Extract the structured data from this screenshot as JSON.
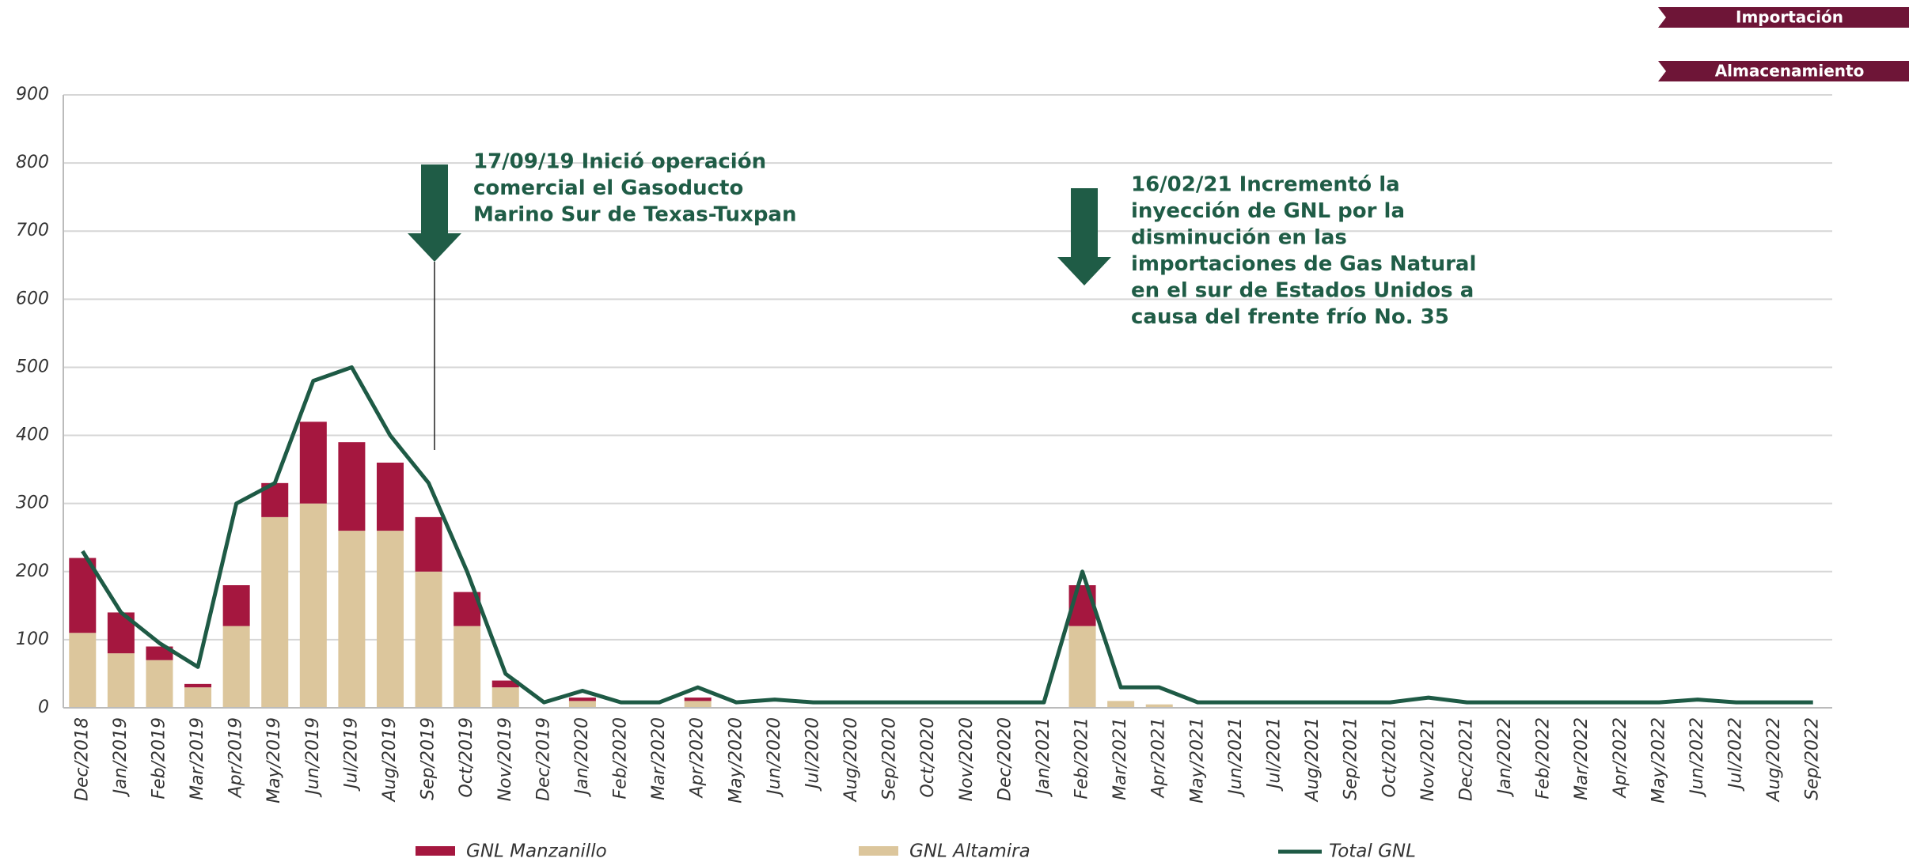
{
  "nav": [
    "Importación",
    "Almacenamiento"
  ],
  "chart_data": {
    "type": "bar",
    "categories": [
      "Dec/2018",
      "Jan/2019",
      "Feb/2019",
      "Mar/2019",
      "Apr/2019",
      "May/2019",
      "Jun/2019",
      "Jul/2019",
      "Aug/2019",
      "Sep/2019",
      "Oct/2019",
      "Nov/2019",
      "Dec/2019",
      "Jan/2020",
      "Feb/2020",
      "Mar/2020",
      "Apr/2020",
      "May/2020",
      "Jun/2020",
      "Jul/2020",
      "Aug/2020",
      "Sep/2020",
      "Oct/2020",
      "Nov/2020",
      "Dec/2020",
      "Jan/2021",
      "Feb/2021",
      "Mar/2021",
      "Apr/2021",
      "May/2021",
      "Jun/2021",
      "Jul/2021",
      "Aug/2021",
      "Sep/2021",
      "Oct/2021",
      "Nov/2021",
      "Dec/2021",
      "Jan/2022",
      "Feb/2022",
      "Mar/2022",
      "Apr/2022",
      "May/2022",
      "Jun/2022",
      "Jul/2022",
      "Aug/2022",
      "Sep/2022"
    ],
    "series": [
      {
        "name": "GNL Manzanillo",
        "color": "#a5173f",
        "values": [
          110,
          60,
          20,
          5,
          60,
          50,
          120,
          130,
          100,
          80,
          50,
          10,
          0,
          5,
          0,
          0,
          5,
          0,
          0,
          0,
          0,
          0,
          0,
          0,
          0,
          0,
          60,
          0,
          0,
          0,
          0,
          0,
          0,
          0,
          0,
          0,
          0,
          0,
          0,
          0,
          0,
          0,
          0,
          0,
          0,
          0
        ]
      },
      {
        "name": "GNL Altamira",
        "color": "#dcc69c",
        "values": [
          110,
          80,
          70,
          30,
          120,
          280,
          300,
          260,
          260,
          200,
          120,
          30,
          0,
          10,
          0,
          0,
          10,
          0,
          0,
          0,
          0,
          0,
          0,
          0,
          0,
          0,
          120,
          10,
          5,
          0,
          0,
          0,
          0,
          0,
          0,
          0,
          0,
          0,
          0,
          0,
          0,
          0,
          0,
          0,
          0,
          0
        ]
      },
      {
        "name": "Total GNL",
        "color": "#1e5a45",
        "values": [
          230,
          140,
          95,
          60,
          300,
          330,
          480,
          500,
          400,
          330,
          200,
          50,
          8,
          25,
          8,
          8,
          30,
          8,
          12,
          8,
          8,
          8,
          8,
          8,
          8,
          8,
          200,
          30,
          30,
          8,
          8,
          8,
          8,
          8,
          8,
          15,
          8,
          8,
          8,
          8,
          8,
          8,
          12,
          8,
          8,
          8
        ]
      }
    ],
    "ylim": [
      0,
      900
    ],
    "yticks": [
      0,
      100,
      200,
      300,
      400,
      500,
      600,
      700,
      800,
      900
    ],
    "grid": true,
    "annotations": [
      {
        "lines": [
          "17/09/19 Inició operación",
          "comercial el Gasoducto",
          "Marino Sur de Texas-Tuxpan"
        ]
      },
      {
        "lines": [
          "16/02/21 Incrementó la",
          "inyección de GNL por la",
          "disminución en las",
          "importaciones de Gas Natural",
          "en el sur de Estados Unidos a",
          "causa del frente frío No. 35"
        ]
      }
    ]
  }
}
